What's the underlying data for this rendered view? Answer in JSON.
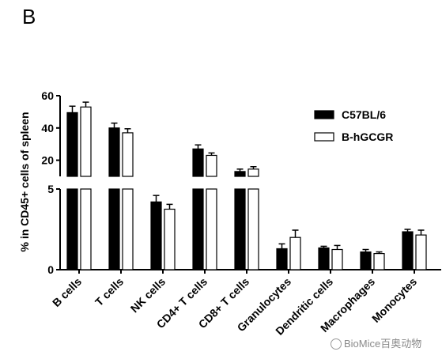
{
  "panel_label": "B",
  "watermark": "BioMice百奥动物",
  "chart_data": {
    "type": "bar",
    "ylabel": "% in CD45+ cells of spleen",
    "categories": [
      "B cells",
      "T cells",
      "NK cells",
      "CD4+ T cells",
      "CD8+ T cells",
      "Granulocytes",
      "Dendritic cells",
      "Macrophages",
      "Monocytes"
    ],
    "y_axis_break": {
      "lower": {
        "range": [
          0,
          5
        ],
        "ticks": [
          0,
          5
        ]
      },
      "upper": {
        "range": [
          10,
          60
        ],
        "ticks": [
          20,
          40,
          60
        ]
      }
    },
    "legend_position": "top-right",
    "grid": false,
    "series": [
      {
        "name": "C57BL/6",
        "color": "#000000",
        "values": [
          49.5,
          40,
          4.2,
          27,
          13,
          1.3,
          1.35,
          1.1,
          2.35
        ],
        "errors": [
          4,
          3,
          0.4,
          2.5,
          1.5,
          0.3,
          0.1,
          0.15,
          0.15
        ]
      },
      {
        "name": "B-hGCGR",
        "color": "#ffffff",
        "values": [
          53,
          37,
          3.75,
          23,
          14.5,
          2.0,
          1.25,
          1.0,
          2.15
        ],
        "errors": [
          3,
          2.5,
          0.3,
          1.5,
          1.5,
          0.45,
          0.25,
          0.1,
          0.3
        ]
      }
    ]
  }
}
